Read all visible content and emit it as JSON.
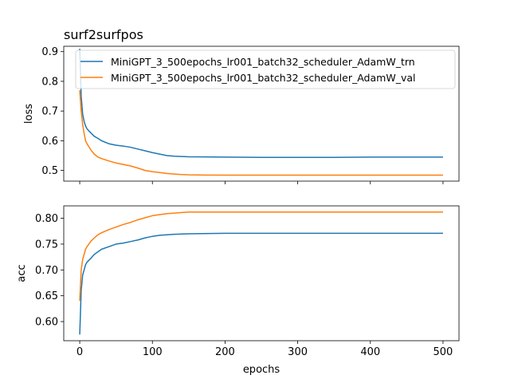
{
  "chart_data": [
    {
      "type": "line",
      "title": "surf2surfpos",
      "xlabel": "",
      "ylabel": "loss",
      "xlim": [
        -22,
        522
      ],
      "ylim": [
        0.464,
        0.918
      ],
      "xticks": [
        0,
        100,
        200,
        300,
        400,
        500
      ],
      "yticks": [
        0.5,
        0.6,
        0.7,
        0.8,
        0.9
      ],
      "ytick_labels": [
        "0.5",
        "0.6",
        "0.7",
        "0.8",
        "0.9"
      ],
      "grid": false,
      "legend": "top-right",
      "series": [
        {
          "name": "MiniGPT_3_500epochs_lr001_batch32_scheduler_AdamW_trn",
          "color": "#1f77b4",
          "x": [
            0,
            2,
            4,
            6,
            8,
            10,
            15,
            20,
            25,
            30,
            40,
            50,
            60,
            70,
            80,
            90,
            100,
            110,
            120,
            130,
            150,
            200,
            250,
            300,
            350,
            400,
            450,
            500
          ],
          "y": [
            0.91,
            0.75,
            0.69,
            0.665,
            0.65,
            0.64,
            0.627,
            0.615,
            0.608,
            0.6,
            0.59,
            0.585,
            0.582,
            0.578,
            0.572,
            0.566,
            0.56,
            0.555,
            0.55,
            0.548,
            0.546,
            0.545,
            0.544,
            0.544,
            0.544,
            0.545,
            0.545,
            0.545
          ]
        },
        {
          "name": "MiniGPT_3_500epochs_lr001_batch32_scheduler_AdamW_val",
          "color": "#ff7f0e",
          "x": [
            0,
            2,
            4,
            6,
            8,
            10,
            15,
            20,
            25,
            30,
            40,
            50,
            60,
            70,
            80,
            90,
            100,
            110,
            120,
            130,
            140,
            150,
            200,
            250,
            300,
            350,
            400,
            450,
            500
          ],
          "y": [
            0.77,
            0.7,
            0.655,
            0.625,
            0.6,
            0.59,
            0.57,
            0.555,
            0.545,
            0.54,
            0.532,
            0.525,
            0.52,
            0.515,
            0.508,
            0.5,
            0.496,
            0.493,
            0.49,
            0.488,
            0.486,
            0.485,
            0.484,
            0.484,
            0.484,
            0.484,
            0.484,
            0.484,
            0.484
          ]
        }
      ]
    },
    {
      "type": "line",
      "title": "",
      "xlabel": "epochs",
      "ylabel": "acc",
      "xlim": [
        -22,
        522
      ],
      "ylim": [
        0.563,
        0.824
      ],
      "xticks": [
        0,
        100,
        200,
        300,
        400,
        500
      ],
      "yticks": [
        0.6,
        0.65,
        0.7,
        0.75,
        0.8
      ],
      "ytick_labels": [
        "0.60",
        "0.65",
        "0.70",
        "0.75",
        "0.80"
      ],
      "grid": false,
      "series": [
        {
          "name": "MiniGPT_3_500epochs_lr001_batch32_scheduler_AdamW_trn",
          "color": "#1f77b4",
          "x": [
            0,
            2,
            4,
            6,
            8,
            10,
            15,
            20,
            25,
            30,
            40,
            50,
            60,
            70,
            80,
            90,
            100,
            110,
            120,
            130,
            150,
            200,
            250,
            300,
            350,
            400,
            450,
            500
          ],
          "y": [
            0.575,
            0.66,
            0.69,
            0.7,
            0.71,
            0.715,
            0.722,
            0.73,
            0.735,
            0.74,
            0.745,
            0.75,
            0.752,
            0.755,
            0.758,
            0.762,
            0.765,
            0.767,
            0.768,
            0.769,
            0.77,
            0.771,
            0.771,
            0.771,
            0.771,
            0.771,
            0.771,
            0.771
          ]
        },
        {
          "name": "MiniGPT_3_500epochs_lr001_batch32_scheduler_AdamW_val",
          "color": "#ff7f0e",
          "x": [
            0,
            2,
            4,
            6,
            8,
            10,
            15,
            20,
            25,
            30,
            40,
            50,
            60,
            70,
            80,
            90,
            100,
            110,
            120,
            130,
            140,
            150,
            200,
            250,
            300,
            350,
            400,
            450,
            500
          ],
          "y": [
            0.64,
            0.7,
            0.72,
            0.73,
            0.74,
            0.745,
            0.755,
            0.762,
            0.768,
            0.772,
            0.778,
            0.783,
            0.788,
            0.792,
            0.797,
            0.801,
            0.805,
            0.807,
            0.809,
            0.81,
            0.811,
            0.812,
            0.812,
            0.812,
            0.812,
            0.812,
            0.812,
            0.812,
            0.812
          ]
        }
      ]
    }
  ]
}
